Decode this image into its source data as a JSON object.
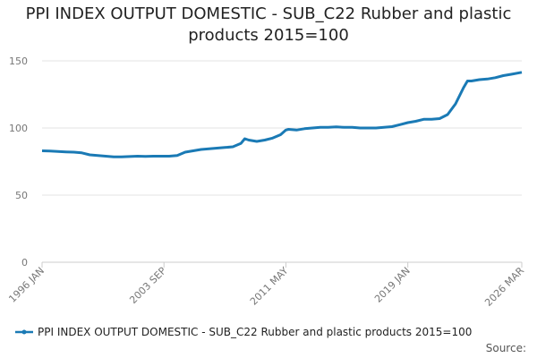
{
  "chart_data": {
    "type": "line",
    "title": "PPI INDEX OUTPUT DOMESTIC - SUB_C22 Rubber and plastic products 2015=100",
    "source": "Source:",
    "x": [
      "1996 JAN",
      "1996 JUL",
      "1997 JAN",
      "1997 JUL",
      "1998 JAN",
      "1998 JUL",
      "1999 JAN",
      "1999 JUL",
      "2000 JAN",
      "2000 JUL",
      "2001 JAN",
      "2001 JUL",
      "2002 JAN",
      "2002 JUL",
      "2003 JAN",
      "2003 JUL",
      "2004 JAN",
      "2004 JUL",
      "2005 JAN",
      "2005 JUL",
      "2006 JAN",
      "2006 JUL",
      "2007 JAN",
      "2007 JUL",
      "2008 JAN",
      "2008 JUL",
      "2008 OCT",
      "2009 JAN",
      "2009 JUL",
      "2010 JAN",
      "2010 JUL",
      "2011 JAN",
      "2011 MAY",
      "2011 JUL",
      "2012 JAN",
      "2012 JUL",
      "2013 JAN",
      "2013 JUL",
      "2014 JAN",
      "2014 JUL",
      "2015 JAN",
      "2015 JUL",
      "2016 JAN",
      "2016 JUL",
      "2017 JAN",
      "2017 JUL",
      "2018 JAN",
      "2018 JUL",
      "2019 JAN",
      "2019 JUL",
      "2020 JAN",
      "2020 JUL",
      "2021 JAN",
      "2021 JUL",
      "2022 JAN",
      "2022 JUL",
      "2022 OCT",
      "2023 JAN",
      "2023 JUL",
      "2024 JAN",
      "2024 JUL",
      "2025 JAN",
      "2025 JUL",
      "2026 MAR"
    ],
    "series": [
      {
        "name": "PPI INDEX OUTPUT DOMESTIC - SUB_C22 Rubber and plastic products 2015=100",
        "color": "#1a7ab5",
        "values": [
          83,
          82.8,
          82.5,
          82.2,
          82,
          81.5,
          80,
          79.5,
          79,
          78.5,
          78.5,
          78.7,
          79,
          78.8,
          79,
          79,
          79,
          79.5,
          82,
          83,
          84,
          84.5,
          85,
          85.5,
          86,
          88.5,
          92,
          91,
          90,
          91,
          92.5,
          95,
          98.5,
          99,
          98.5,
          99.5,
          100,
          100.5,
          100.5,
          100.8,
          100.5,
          100.5,
          100,
          100,
          100,
          100.5,
          101,
          102.5,
          104,
          105,
          106.5,
          106.5,
          107,
          110,
          118,
          130,
          135,
          135,
          136,
          136.5,
          137.5,
          139,
          140,
          141.5
        ]
      }
    ],
    "xticks": [
      "1996 JAN",
      "2003 SEP",
      "2011 MAY",
      "2019 JAN",
      "2026 MAR"
    ],
    "ylim": [
      0,
      150
    ],
    "yticks": [
      0,
      50,
      100,
      150
    ],
    "grid": true
  }
}
